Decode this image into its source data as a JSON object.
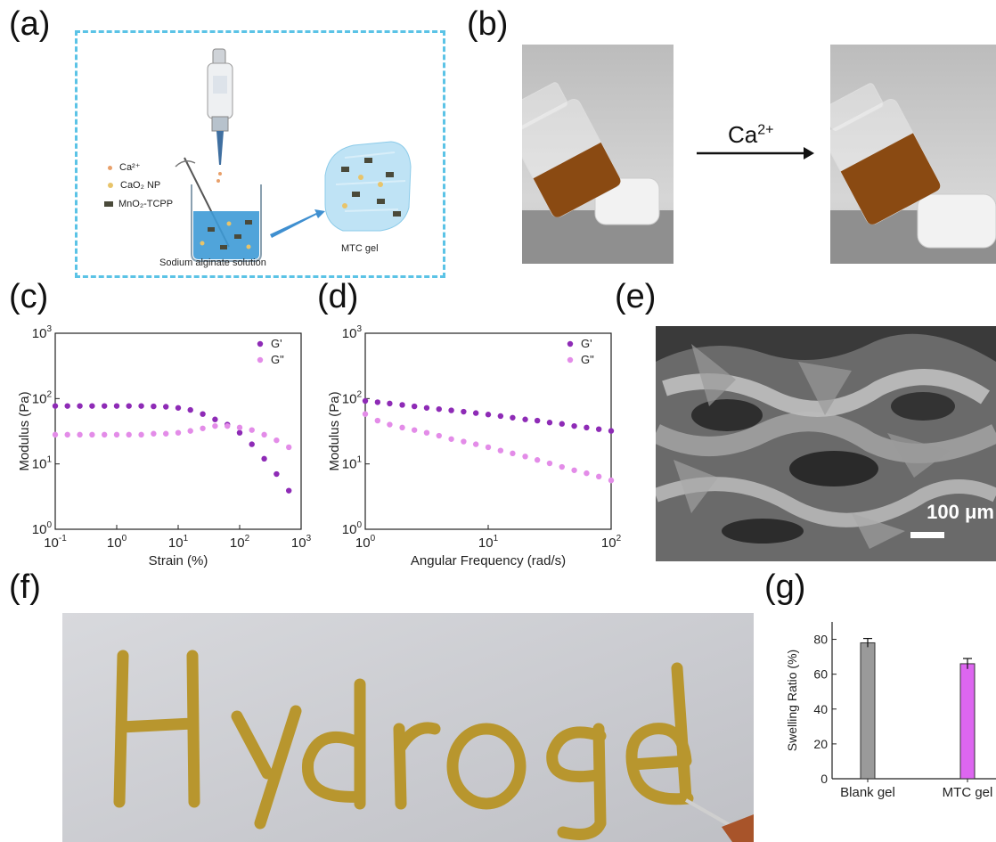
{
  "panels": {
    "a": "(a)",
    "b": "(b)",
    "c": "(c)",
    "d": "(d)",
    "e": "(e)",
    "f": "(f)",
    "g": "(g)"
  },
  "schematic": {
    "legend": [
      {
        "label": "Ca²⁺",
        "color": "#e8a06a"
      },
      {
        "label": "CaO₂ NP",
        "color": "#e8c46a"
      },
      {
        "label": "MnO₂-TCPP",
        "color": "#4a4a3a"
      }
    ],
    "beaker_label": "Sodium alginate solution",
    "gel_label": "MTC gel"
  },
  "photo_b": {
    "arrow_label_base": "Ca",
    "arrow_label_sup": "2+"
  },
  "sem": {
    "scale_label": "100 μm"
  },
  "chart_data": [
    {
      "type": "scatter",
      "panel": "c",
      "xlabel": "Strain (%)",
      "ylabel": "Modulus (Pa)",
      "xscale": "log",
      "yscale": "log",
      "xlim": [
        0.1,
        1000
      ],
      "ylim": [
        1,
        1000
      ],
      "xticks": [
        "10-1",
        "100",
        "101",
        "102",
        "103"
      ],
      "yticks": [
        "100",
        "101",
        "102",
        "103"
      ],
      "legend_position": "top-right",
      "series": [
        {
          "name": "G'",
          "color": "#8e2bb6",
          "x": [
            0.1,
            0.158,
            0.251,
            0.398,
            0.631,
            1.0,
            1.58,
            2.51,
            3.98,
            6.31,
            10,
            15.8,
            25.1,
            39.8,
            63.1,
            100,
            158,
            251,
            398,
            631
          ],
          "y": [
            77,
            77,
            77,
            77,
            77,
            77,
            77,
            77,
            76,
            75,
            72,
            67,
            58,
            48,
            40,
            30,
            20,
            12,
            7,
            3.9
          ]
        },
        {
          "name": "G\"",
          "color": "#e38ce8",
          "x": [
            0.1,
            0.158,
            0.251,
            0.398,
            0.631,
            1.0,
            1.58,
            2.51,
            3.98,
            6.31,
            10,
            15.8,
            25.1,
            39.8,
            63.1,
            100,
            158,
            251,
            398,
            631
          ],
          "y": [
            28,
            28,
            28,
            28,
            28,
            28,
            28,
            28,
            29,
            29,
            30,
            32,
            35,
            38,
            38,
            36,
            33,
            28,
            23,
            18
          ]
        }
      ]
    },
    {
      "type": "scatter",
      "panel": "d",
      "xlabel": "Angular Frequency (rad/s)",
      "ylabel": "Modulus (Pa)",
      "xscale": "log",
      "yscale": "log",
      "xlim": [
        1,
        100
      ],
      "ylim": [
        1,
        1000
      ],
      "xticks": [
        "100",
        "101",
        "102"
      ],
      "yticks": [
        "100",
        "101",
        "102",
        "103"
      ],
      "legend_position": "top-right",
      "series": [
        {
          "name": "G'",
          "color": "#8e2bb6",
          "x": [
            1,
            1.26,
            1.58,
            2.0,
            2.51,
            3.16,
            3.98,
            5.01,
            6.31,
            7.94,
            10,
            12.6,
            15.8,
            20,
            25.1,
            31.6,
            39.8,
            50.1,
            63.1,
            79.4,
            100
          ],
          "y": [
            92,
            88,
            84,
            80,
            76,
            72,
            69,
            66,
            63,
            60,
            57,
            54,
            51,
            48,
            46,
            43,
            41,
            38,
            36,
            34,
            32
          ]
        },
        {
          "name": "G\"",
          "color": "#e38ce8",
          "x": [
            1,
            1.26,
            1.58,
            2.0,
            2.51,
            3.16,
            3.98,
            5.01,
            6.31,
            7.94,
            10,
            12.6,
            15.8,
            20,
            25.1,
            31.6,
            39.8,
            50.1,
            63.1,
            79.4,
            100
          ],
          "y": [
            58,
            46,
            40,
            36,
            33,
            30,
            27,
            24,
            22,
            20,
            18,
            16,
            14.5,
            13,
            11.5,
            10.2,
            9.0,
            8.0,
            7.2,
            6.4,
            5.6
          ]
        }
      ]
    },
    {
      "type": "bar",
      "panel": "g",
      "ylabel": "Swelling Ratio (%)",
      "categories": [
        "Blank gel",
        "MTC gel"
      ],
      "values": [
        78,
        66
      ],
      "errors": [
        2.5,
        3.0
      ],
      "colors": [
        "#9a9a9a",
        "#dd66f0"
      ],
      "ylim": [
        0,
        90
      ],
      "yticks": [
        "0",
        "20",
        "40",
        "60",
        "80"
      ]
    }
  ],
  "hydrogel": {
    "letters": [
      "H",
      "y",
      "d",
      "r",
      "o",
      "g",
      "e",
      "l"
    ]
  }
}
